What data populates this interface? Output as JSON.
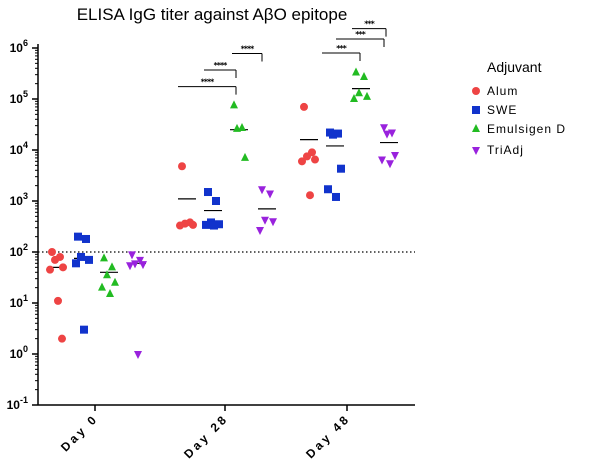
{
  "chart_data": {
    "type": "scatter",
    "title": "ELISA IgG titer against AβO epitope",
    "xlabel": "",
    "ylabel": "",
    "yscale": "log",
    "ylim_exponent": [
      -1,
      6
    ],
    "yticks": [
      {
        "base": "10",
        "exp": "6"
      },
      {
        "base": "10",
        "exp": "5"
      },
      {
        "base": "10",
        "exp": "4"
      },
      {
        "base": "10",
        "exp": "3"
      },
      {
        "base": "10",
        "exp": "2"
      },
      {
        "base": "10",
        "exp": "1"
      },
      {
        "base": "10",
        "exp": "0"
      },
      {
        "base": "10",
        "exp": "-1"
      }
    ],
    "categories": [
      "Day 0",
      "Day 28",
      "Day 48"
    ],
    "threshold": 100,
    "legend": {
      "title": "Adjuvant",
      "position": "right"
    },
    "series": [
      {
        "name": "Alum",
        "marker": "circle",
        "color": "#ee4444",
        "values": [
          [
            100,
            80,
            70,
            50,
            45,
            11,
            2
          ],
          [
            4800,
            380,
            360,
            340,
            330
          ],
          [
            70000,
            9000,
            7500,
            6500,
            6000,
            1300
          ]
        ],
        "means": [
          50,
          1100,
          16000
        ]
      },
      {
        "name": "SWE",
        "marker": "square",
        "color": "#1133cc",
        "values": [
          [
            200,
            180,
            80,
            70,
            60,
            3
          ],
          [
            1500,
            1000,
            380,
            350,
            340,
            330
          ],
          [
            22000,
            21000,
            20000,
            4300,
            1700,
            1200
          ]
        ],
        "means": [
          75,
          650,
          12000
        ]
      },
      {
        "name": "Emulsigen D",
        "marker": "triangle-up",
        "color": "#22bb22",
        "values": [
          [
            75,
            50,
            35,
            25,
            20,
            15
          ],
          [
            75000,
            27000,
            26000,
            7000
          ],
          [
            330000,
            270000,
            130000,
            110000,
            100000
          ]
        ],
        "means": [
          40,
          25000,
          160000
        ]
      },
      {
        "name": "TriAdj",
        "marker": "triangle-down",
        "color": "#9922dd",
        "values": [
          [
            90,
            70,
            60,
            58,
            55,
            1
          ],
          [
            1700,
            1400,
            430,
            400,
            270
          ],
          [
            28000,
            22000,
            21000,
            8000,
            6500,
            5500
          ]
        ],
        "means": [
          60,
          700,
          14000
        ]
      }
    ],
    "significance": [
      {
        "label": "****",
        "category": "Day 28",
        "level": 175000
      },
      {
        "label": "****",
        "category": "Day 28",
        "level": 370000
      },
      {
        "label": "****",
        "category": "Day 28",
        "level": 780000
      },
      {
        "label": "***",
        "category": "Day 48",
        "level": 800000
      },
      {
        "label": "***",
        "category": "Day 48",
        "level": 1500000
      },
      {
        "label": "***",
        "category": "Day 48",
        "level": 2400000
      }
    ]
  }
}
